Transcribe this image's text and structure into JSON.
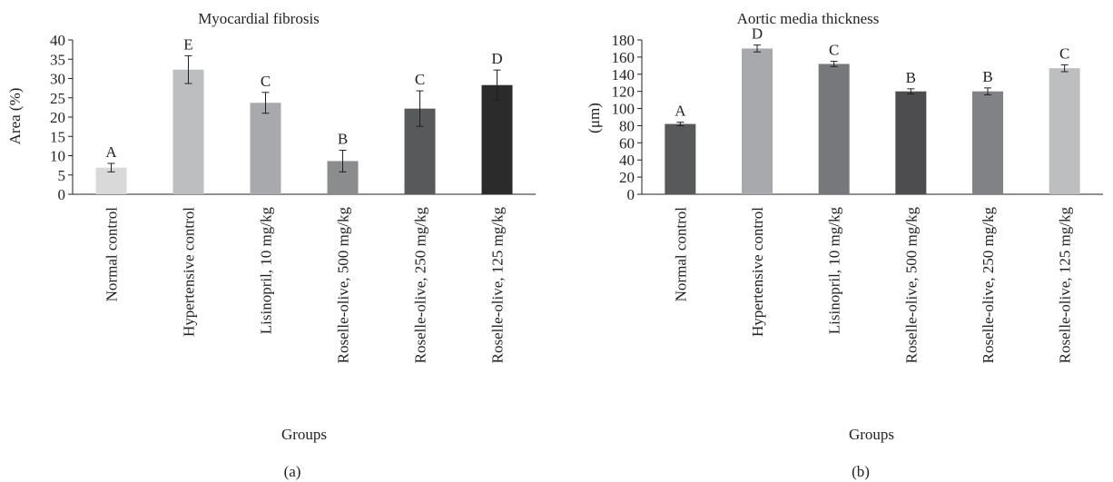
{
  "chart_data": [
    {
      "panel_label": "(a)",
      "type": "bar",
      "title": "Myocardial fibrosis",
      "xlabel": "Groups",
      "ylabel": "Area (%)",
      "ylim": [
        0,
        40
      ],
      "yticks": [
        0,
        5,
        10,
        15,
        20,
        25,
        30,
        35,
        40
      ],
      "categories": [
        "Normal control",
        "Hypertensive control",
        "Lisinopril, 10 mg/kg",
        "Roselle-olive, 500 mg/kg",
        "Roselle-olive, 250 mg/kg",
        "Roselle-olive, 125 mg/kg"
      ],
      "values": [
        6.9,
        32.3,
        23.7,
        8.6,
        22.2,
        28.3
      ],
      "errors": [
        1.1,
        3.6,
        2.7,
        2.8,
        4.6,
        3.9
      ],
      "significance_letters": [
        "A",
        "E",
        "C",
        "B",
        "C",
        "D"
      ],
      "colors": [
        "#d9d9d9",
        "#bcbec0",
        "#a7a9ac",
        "#8a8c8e",
        "#58595b",
        "#2b2b2b"
      ],
      "grid": false,
      "legend": "none"
    },
    {
      "panel_label": "(b)",
      "type": "bar",
      "title": "Aortic media thickness",
      "xlabel": "Groups",
      "ylabel": "(μm)",
      "ylim": [
        0,
        180
      ],
      "yticks": [
        0,
        20,
        40,
        60,
        80,
        100,
        120,
        140,
        160,
        180
      ],
      "categories": [
        "Normal control",
        "Hypertensive control",
        "Lisinopril, 10 mg/kg",
        "Roselle-olive, 500 mg/kg",
        "Roselle-olive, 250 mg/kg",
        "Roselle-olive, 125 mg/kg"
      ],
      "values": [
        82,
        170,
        152,
        120,
        120,
        147
      ],
      "errors": [
        2,
        4,
        3,
        3,
        4,
        4
      ],
      "significance_letters": [
        "A",
        "D",
        "C",
        "B",
        "B",
        "C"
      ],
      "colors": [
        "#58595b",
        "#a7a9ac",
        "#77787b",
        "#4d4d4f",
        "#808285",
        "#bcbec0"
      ],
      "grid": false,
      "legend": "none"
    }
  ]
}
